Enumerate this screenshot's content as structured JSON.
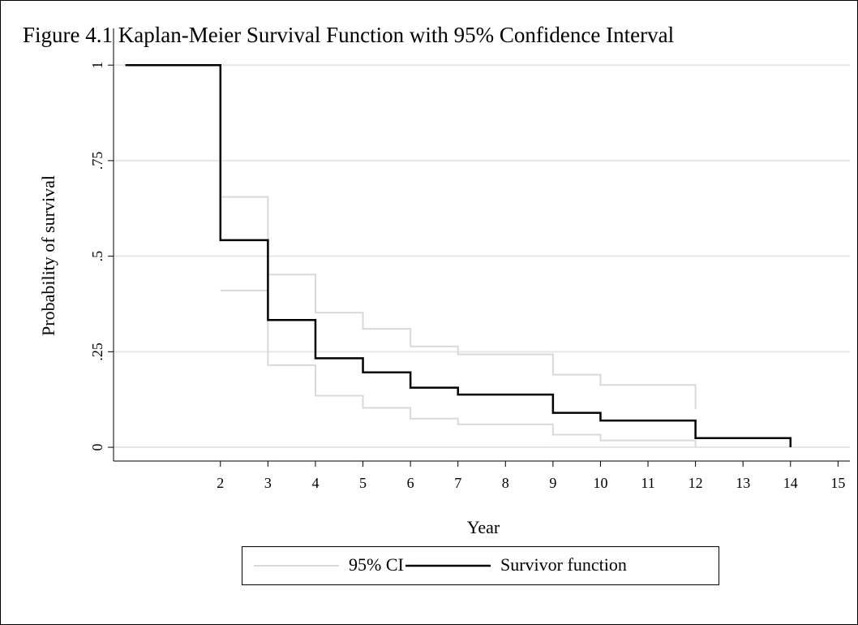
{
  "chart_data": {
    "type": "step",
    "title": "Figure 4.1 Kaplan-Meier Survival Function with 95% Confidence Interval",
    "x_label": "Year",
    "y_label": "Probability of survival",
    "x": [
      0,
      2,
      3,
      4,
      5,
      6,
      7,
      9,
      10,
      12,
      14
    ],
    "series": [
      {
        "name": "95% CI",
        "color": "#d9d9d9",
        "upper": [
          null,
          0.655,
          0.452,
          0.352,
          0.31,
          0.264,
          0.243,
          0.19,
          0.163,
          0.1,
          null
        ],
        "lower": [
          null,
          0.41,
          0.215,
          0.135,
          0.103,
          0.075,
          0.06,
          0.033,
          0.018,
          0,
          null
        ]
      },
      {
        "name": "Survivor function",
        "color": "#000000",
        "values": [
          1,
          0.542,
          0.333,
          0.233,
          0.196,
          0.156,
          0.138,
          0.09,
          0.07,
          0.024,
          0
        ]
      }
    ],
    "xlim": [
      -0.25,
      15.25
    ],
    "xticks": [
      2,
      3,
      4,
      5,
      6,
      7,
      8,
      9,
      10,
      11,
      12,
      13,
      14,
      15
    ],
    "ylim": [
      -0.036,
      1.096
    ],
    "yticks": [
      0,
      {
        "value": 0.25,
        "label": ".25"
      },
      {
        "value": 0.5,
        "label": ".5"
      },
      {
        "value": 0.75,
        "label": ".75"
      },
      1
    ],
    "grid": true,
    "legend": "bottom"
  }
}
